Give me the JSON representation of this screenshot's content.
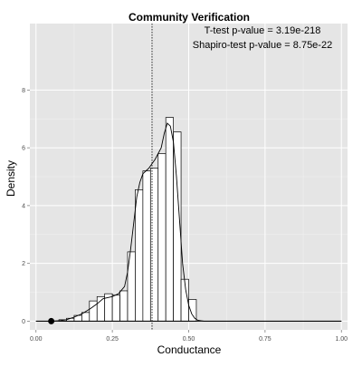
{
  "chart_data": {
    "type": "histogram",
    "title": "Community Verification",
    "xlabel": "Conductance",
    "ylabel": "Density",
    "xlim": [
      -0.02,
      1.02
    ],
    "ylim": [
      -0.3,
      10.3
    ],
    "x_ticks": [
      0.0,
      0.25,
      0.5,
      0.75,
      1.0
    ],
    "x_tick_labels": [
      "0.00",
      "0.25",
      "0.50",
      "0.75",
      "1.00"
    ],
    "y_ticks": [
      0,
      2,
      4,
      6,
      8
    ],
    "y_tick_labels": [
      "0",
      "2",
      "4",
      "6",
      "8"
    ],
    "grid": true,
    "annotations": [
      "T-test p-value = 3.19e-218",
      "Shapiro-test p-value = 8.75e-22"
    ],
    "bins": [
      {
        "x0": 0.0,
        "x1": 0.025,
        "density": 0.0
      },
      {
        "x0": 0.025,
        "x1": 0.05,
        "density": 0.0
      },
      {
        "x0": 0.05,
        "x1": 0.075,
        "density": 0.0
      },
      {
        "x0": 0.075,
        "x1": 0.1,
        "density": 0.05
      },
      {
        "x0": 0.1,
        "x1": 0.125,
        "density": 0.1
      },
      {
        "x0": 0.125,
        "x1": 0.15,
        "density": 0.2
      },
      {
        "x0": 0.15,
        "x1": 0.175,
        "density": 0.3
      },
      {
        "x0": 0.175,
        "x1": 0.2,
        "density": 0.7
      },
      {
        "x0": 0.2,
        "x1": 0.225,
        "density": 0.85
      },
      {
        "x0": 0.225,
        "x1": 0.25,
        "density": 0.95
      },
      {
        "x0": 0.25,
        "x1": 0.275,
        "density": 0.9
      },
      {
        "x0": 0.275,
        "x1": 0.3,
        "density": 1.05
      },
      {
        "x0": 0.3,
        "x1": 0.325,
        "density": 2.4
      },
      {
        "x0": 0.325,
        "x1": 0.35,
        "density": 4.55
      },
      {
        "x0": 0.35,
        "x1": 0.375,
        "density": 5.2
      },
      {
        "x0": 0.375,
        "x1": 0.4,
        "density": 5.3
      },
      {
        "x0": 0.4,
        "x1": 0.425,
        "density": 5.8
      },
      {
        "x0": 0.425,
        "x1": 0.45,
        "density": 7.05
      },
      {
        "x0": 0.45,
        "x1": 0.475,
        "density": 6.55
      },
      {
        "x0": 0.475,
        "x1": 0.5,
        "density": 1.45
      },
      {
        "x0": 0.5,
        "x1": 0.525,
        "density": 0.75
      }
    ],
    "density_curve": {
      "x": [
        0.0,
        0.05,
        0.08,
        0.1,
        0.12,
        0.15,
        0.18,
        0.2,
        0.22,
        0.25,
        0.27,
        0.29,
        0.3,
        0.31,
        0.32,
        0.33,
        0.34,
        0.35,
        0.36,
        0.37,
        0.38,
        0.39,
        0.4,
        0.41,
        0.42,
        0.43,
        0.44,
        0.45,
        0.46,
        0.47,
        0.48,
        0.49,
        0.5,
        0.51,
        0.52,
        0.53,
        0.55,
        0.6,
        1.0
      ],
      "y": [
        0.0,
        0.0,
        0.02,
        0.05,
        0.12,
        0.25,
        0.45,
        0.6,
        0.78,
        0.85,
        0.95,
        1.2,
        1.7,
        2.5,
        3.4,
        4.3,
        4.8,
        5.1,
        5.2,
        5.3,
        5.45,
        5.6,
        5.8,
        6.0,
        6.5,
        6.85,
        6.75,
        6.2,
        5.0,
        3.5,
        2.0,
        1.1,
        0.55,
        0.25,
        0.1,
        0.03,
        0.0,
        0.0,
        0.0
      ]
    },
    "mean_line_x": 0.38,
    "marker_point": {
      "x": 0.05,
      "y": 0.0
    }
  }
}
